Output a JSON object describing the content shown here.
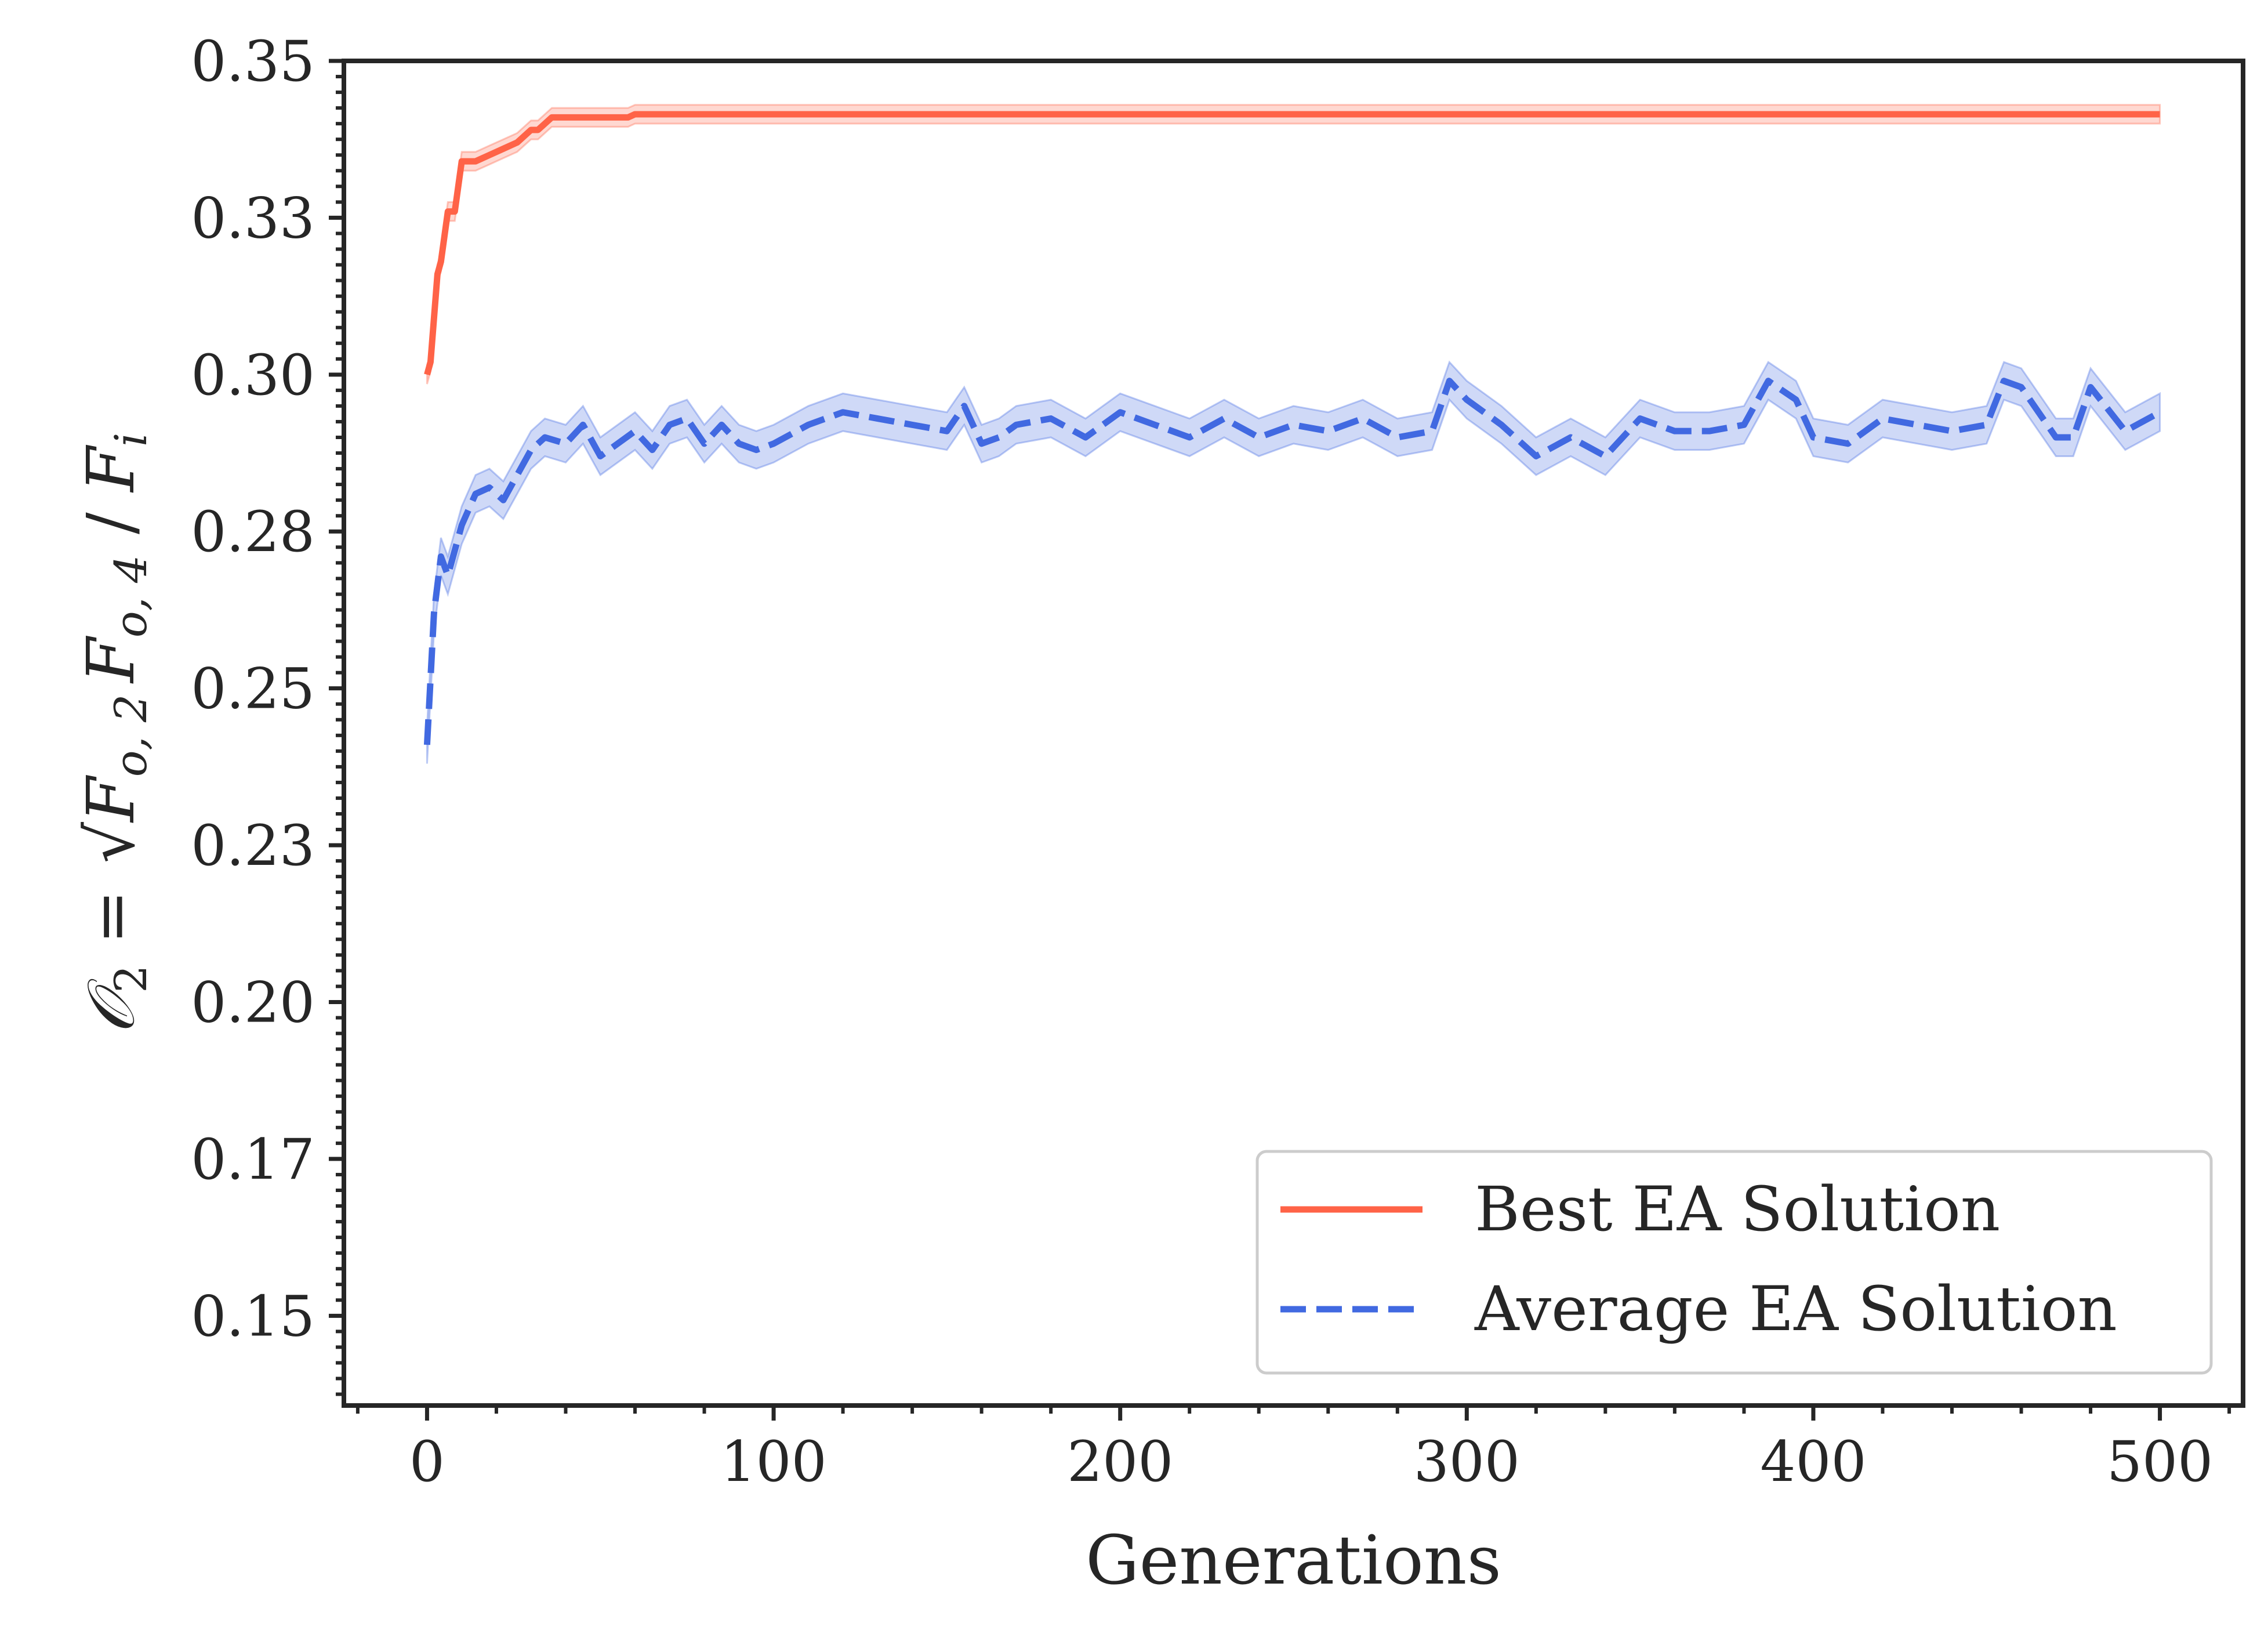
{
  "chart_data": {
    "type": "line",
    "title": "",
    "xlabel": "Generations",
    "ylabel": "O_2 = sqrt(F_o,2 F_o,4) / F_i",
    "ylabel_parts": {
      "lhs": "𝒪",
      "lhs_sub": "2",
      "eq": " = ",
      "term1": "F",
      "term1_sub": "o, 2",
      "term2": "F",
      "term2_sub": "o, 4",
      "div": " / ",
      "term3": "F",
      "term3_sub": "i"
    },
    "xlim": [
      -24,
      524
    ],
    "ylim": [
      0.1357,
      0.35
    ],
    "xticks": [
      0,
      100,
      200,
      300,
      400,
      500
    ],
    "xtick_labels": [
      "0",
      "100",
      "200",
      "300",
      "400",
      "500"
    ],
    "yticks": [
      0.15,
      0.175,
      0.2,
      0.225,
      0.25,
      0.275,
      0.3,
      0.325,
      0.35
    ],
    "ytick_labels": [
      "0.15",
      "0.17",
      "0.20",
      "0.23",
      "0.25",
      "0.28",
      "0.30",
      "0.33",
      "0.35"
    ],
    "legend_position": "lower right",
    "series": [
      {
        "name": "Best EA Solution",
        "color": "#FF6347",
        "style": "solid",
        "x": [
          0,
          1,
          2,
          3,
          4,
          5,
          6,
          8,
          10,
          14,
          18,
          22,
          26,
          28,
          30,
          32,
          34,
          36,
          38,
          40,
          45,
          50,
          55,
          58,
          60,
          80,
          120,
          200,
          300,
          400,
          500
        ],
        "y": [
          0.3,
          0.302,
          0.309,
          0.316,
          0.318,
          0.322,
          0.326,
          0.326,
          0.334,
          0.334,
          0.335,
          0.336,
          0.337,
          0.338,
          0.339,
          0.339,
          0.34,
          0.341,
          0.341,
          0.341,
          0.341,
          0.341,
          0.341,
          0.341,
          0.3415,
          0.3415,
          0.3415,
          0.3415,
          0.3415,
          0.3415,
          0.3415
        ],
        "band": 0.0015
      },
      {
        "name": "Average EA Solution",
        "color": "#4169E1",
        "style": "dashed",
        "x": [
          0,
          2,
          4,
          6,
          8,
          10,
          14,
          18,
          22,
          26,
          30,
          34,
          40,
          45,
          50,
          55,
          60,
          65,
          70,
          75,
          80,
          85,
          90,
          95,
          100,
          110,
          120,
          130,
          140,
          150,
          155,
          160,
          165,
          170,
          180,
          190,
          200,
          210,
          220,
          230,
          240,
          250,
          260,
          270,
          280,
          290,
          295,
          300,
          310,
          320,
          330,
          340,
          350,
          360,
          370,
          380,
          387,
          395,
          400,
          410,
          420,
          430,
          440,
          450,
          455,
          460,
          470,
          475,
          480,
          490,
          500
        ],
        "y": [
          0.241,
          0.262,
          0.271,
          0.268,
          0.272,
          0.276,
          0.281,
          0.282,
          0.28,
          0.284,
          0.288,
          0.29,
          0.289,
          0.292,
          0.287,
          0.289,
          0.291,
          0.288,
          0.292,
          0.293,
          0.289,
          0.292,
          0.289,
          0.288,
          0.289,
          0.292,
          0.294,
          0.293,
          0.292,
          0.291,
          0.295,
          0.289,
          0.29,
          0.292,
          0.293,
          0.29,
          0.294,
          0.292,
          0.29,
          0.293,
          0.29,
          0.292,
          0.291,
          0.293,
          0.29,
          0.291,
          0.299,
          0.296,
          0.292,
          0.287,
          0.29,
          0.287,
          0.293,
          0.291,
          0.291,
          0.292,
          0.299,
          0.296,
          0.29,
          0.289,
          0.293,
          0.292,
          0.291,
          0.292,
          0.299,
          0.298,
          0.29,
          0.29,
          0.298,
          0.291,
          0.294
        ],
        "band": 0.003
      }
    ]
  }
}
